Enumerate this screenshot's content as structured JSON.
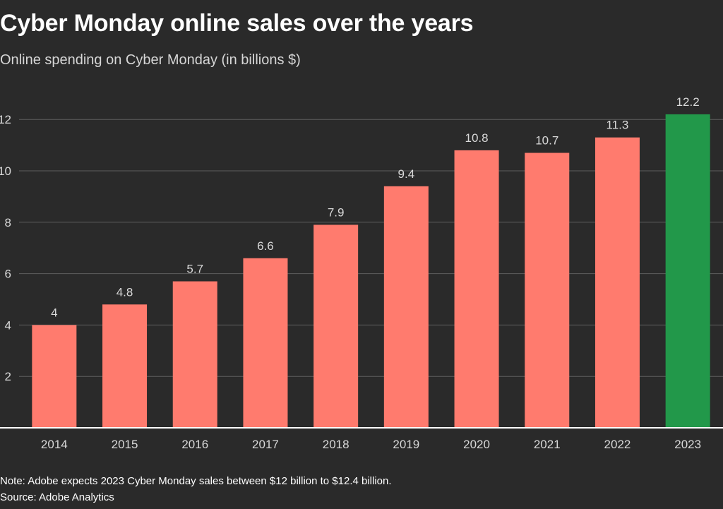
{
  "title": "Cyber Monday online sales over the years",
  "subtitle": "Online spending on Cyber Monday (in billions $)",
  "note": "Note: Adobe expects 2023 Cyber Monday sales between $12 billion to $12.4 billion.",
  "source": "Source: Adobe Analytics",
  "colors": {
    "background": "#2a2a2a",
    "bar": "#ff7b6e",
    "highlight_bar": "#22984a",
    "gridline": "#5e5e5e",
    "axis": "#ffffff",
    "tick_text": "#d9d9d9"
  },
  "chart_data": {
    "type": "bar",
    "title": "Cyber Monday online sales over the years",
    "subtitle": "Online spending on Cyber Monday (in billions $)",
    "xlabel": "",
    "ylabel": "",
    "categories": [
      "2014",
      "2015",
      "2016",
      "2017",
      "2018",
      "2019",
      "2020",
      "2021",
      "2022",
      "2023"
    ],
    "values": [
      4,
      4.8,
      5.7,
      6.6,
      7.9,
      9.4,
      10.8,
      10.7,
      11.3,
      12.2
    ],
    "value_labels": [
      "4",
      "4.8",
      "5.7",
      "6.6",
      "7.9",
      "9.4",
      "10.8",
      "10.7",
      "11.3",
      "12.2"
    ],
    "highlight_category": "2023",
    "ylim": [
      0,
      12.2
    ],
    "yticks": [
      2,
      4,
      6,
      8,
      10,
      12
    ],
    "grid": true,
    "legend": "none"
  }
}
